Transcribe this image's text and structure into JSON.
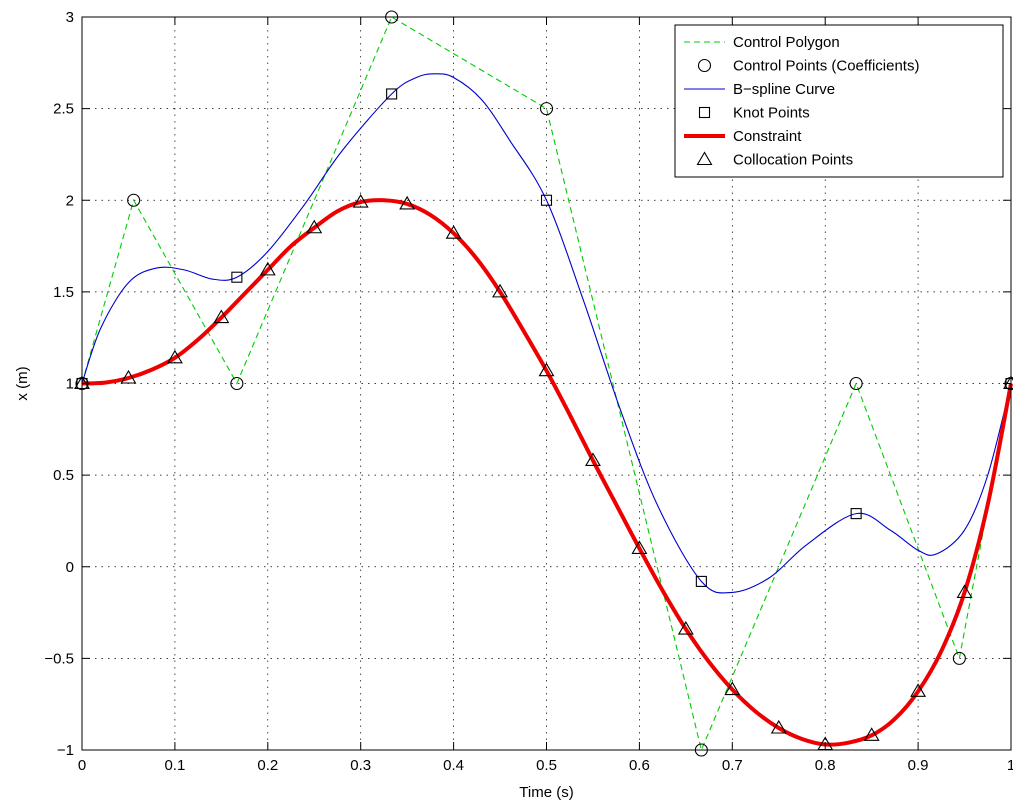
{
  "chart_data": {
    "type": "line",
    "xlabel": "Time (s)",
    "ylabel": "x (m)",
    "xlim": [
      0,
      1
    ],
    "ylim": [
      -1,
      3
    ],
    "xticks": [
      0,
      0.1,
      0.2,
      0.3,
      0.4,
      0.5,
      0.6,
      0.7,
      0.8,
      0.9,
      1
    ],
    "xtick_labels": [
      "0",
      "0.1",
      "0.2",
      "0.3",
      "0.4",
      "0.5",
      "0.6",
      "0.7",
      "0.8",
      "0.9",
      "1"
    ],
    "yticks": [
      -1,
      -0.5,
      0,
      0.5,
      1,
      1.5,
      2,
      2.5,
      3
    ],
    "ytick_labels": [
      "−1",
      "−0.5",
      "0",
      "0.5",
      "1",
      "1.5",
      "2",
      "2.5",
      "3"
    ],
    "grid": true,
    "legend_position": "top-right",
    "series": [
      {
        "name": "Control Polygon",
        "style": "dashed-line",
        "color": "#00cc00",
        "x": [
          0,
          0.0556,
          0.1667,
          0.3333,
          0.5,
          0.6667,
          0.8333,
          0.9444,
          1
        ],
        "y": [
          1,
          2,
          1,
          3,
          2.5,
          -1,
          1,
          -0.5,
          1
        ]
      },
      {
        "name": "Control Points (Coefficients)",
        "style": "circle-markers",
        "color": "#000000",
        "x": [
          0,
          0.0556,
          0.1667,
          0.3333,
          0.5,
          0.6667,
          0.8333,
          0.9444,
          1
        ],
        "y": [
          1,
          2,
          1,
          3,
          2.5,
          -1,
          1,
          -0.5,
          1
        ]
      },
      {
        "name": "B−spline Curve",
        "style": "line",
        "color": "#0000cc",
        "x": [
          0,
          0.02,
          0.05,
          0.08,
          0.11,
          0.14,
          0.1667,
          0.2,
          0.24,
          0.28,
          0.3333,
          0.36,
          0.38,
          0.4,
          0.43,
          0.46,
          0.5,
          0.54,
          0.58,
          0.62,
          0.6667,
          0.7,
          0.74,
          0.78,
          0.8333,
          0.87,
          0.9,
          0.92,
          0.95,
          0.975,
          1
        ],
        "y": [
          1,
          1.3,
          1.55,
          1.63,
          1.62,
          1.57,
          1.58,
          1.72,
          1.98,
          2.27,
          2.58,
          2.67,
          2.69,
          2.67,
          2.55,
          2.33,
          2.0,
          1.45,
          0.85,
          0.33,
          -0.08,
          -0.14,
          -0.06,
          0.12,
          0.29,
          0.2,
          0.09,
          0.07,
          0.2,
          0.5,
          1
        ]
      },
      {
        "name": "Knot Points",
        "style": "square-markers",
        "color": "#000000",
        "x": [
          0,
          0.1667,
          0.3333,
          0.5,
          0.6667,
          0.8333,
          1
        ],
        "y": [
          1,
          1.58,
          2.58,
          2.0,
          -0.08,
          0.29,
          1
        ]
      },
      {
        "name": "Constraint",
        "style": "thick-line",
        "color": "#ee0000",
        "x": [
          0,
          0.025,
          0.05,
          0.075,
          0.1,
          0.125,
          0.15,
          0.175,
          0.2,
          0.225,
          0.25,
          0.275,
          0.3,
          0.325,
          0.35,
          0.375,
          0.4,
          0.425,
          0.45,
          0.475,
          0.5,
          0.525,
          0.55,
          0.575,
          0.6,
          0.625,
          0.65,
          0.675,
          0.7,
          0.725,
          0.75,
          0.775,
          0.8,
          0.825,
          0.85,
          0.875,
          0.9,
          0.925,
          0.95,
          0.975,
          1
        ],
        "y": [
          1,
          1.005,
          1.03,
          1.075,
          1.14,
          1.24,
          1.36,
          1.49,
          1.62,
          1.75,
          1.85,
          1.94,
          1.99,
          2.0,
          1.98,
          1.92,
          1.82,
          1.68,
          1.5,
          1.29,
          1.07,
          0.83,
          0.58,
          0.34,
          0.1,
          -0.13,
          -0.34,
          -0.52,
          -0.67,
          -0.79,
          -0.88,
          -0.94,
          -0.97,
          -0.96,
          -0.92,
          -0.83,
          -0.68,
          -0.46,
          -0.14,
          0.34,
          1
        ]
      },
      {
        "name": "Collocation Points",
        "style": "triangle-markers",
        "color": "#000000",
        "x": [
          0,
          0.05,
          0.1,
          0.15,
          0.2,
          0.25,
          0.3,
          0.35,
          0.4,
          0.45,
          0.5,
          0.55,
          0.6,
          0.65,
          0.7,
          0.75,
          0.8,
          0.85,
          0.9,
          0.95,
          1
        ],
        "y": [
          1,
          1.03,
          1.14,
          1.36,
          1.62,
          1.85,
          1.99,
          1.98,
          1.82,
          1.5,
          1.07,
          0.58,
          0.1,
          -0.34,
          -0.67,
          -0.88,
          -0.97,
          -0.92,
          -0.68,
          -0.14,
          1
        ]
      }
    ]
  }
}
